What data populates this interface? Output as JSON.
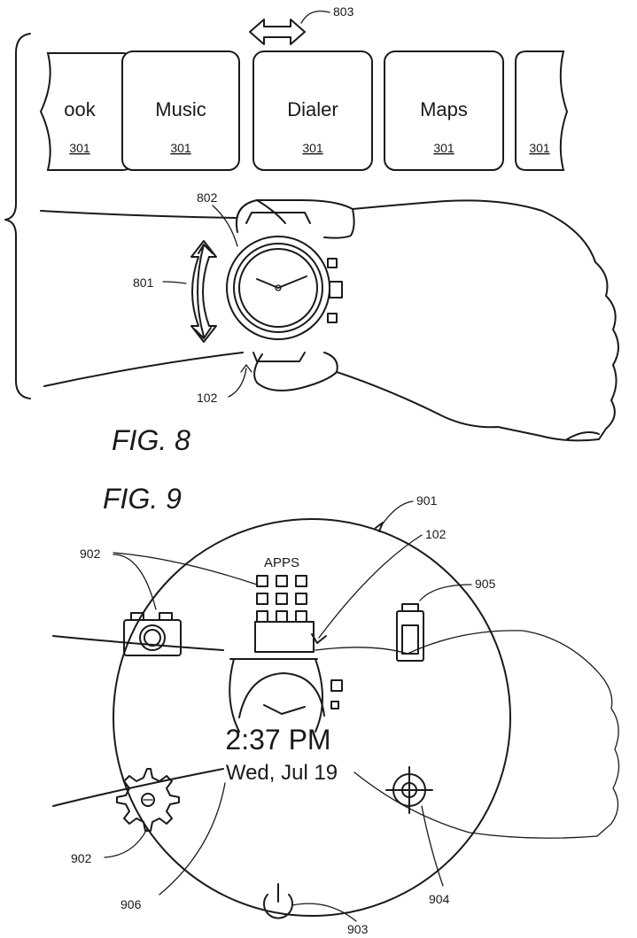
{
  "figure8": {
    "caption": "FIG. 8",
    "cards": [
      {
        "label": "ook",
        "ref": "301"
      },
      {
        "label": "Music",
        "ref": "301"
      },
      {
        "label": "Dialer",
        "ref": "301"
      },
      {
        "label": "Maps",
        "ref": "301"
      },
      {
        "label": "",
        "ref": "301"
      }
    ],
    "refs": {
      "scroll_arrow": "803",
      "watch_bezel": "802",
      "rotation_arrow": "801",
      "watch": "102"
    }
  },
  "figure9": {
    "caption": "FIG. 9",
    "time": "2:37 PM",
    "date": "Wed, Jul 19",
    "apps_label": "APPS",
    "refs": {
      "display": "901",
      "watch": "102",
      "icons_top": "902",
      "battery": "905",
      "settings": "902",
      "date_ref": "906",
      "power": "903",
      "target": "904"
    }
  }
}
